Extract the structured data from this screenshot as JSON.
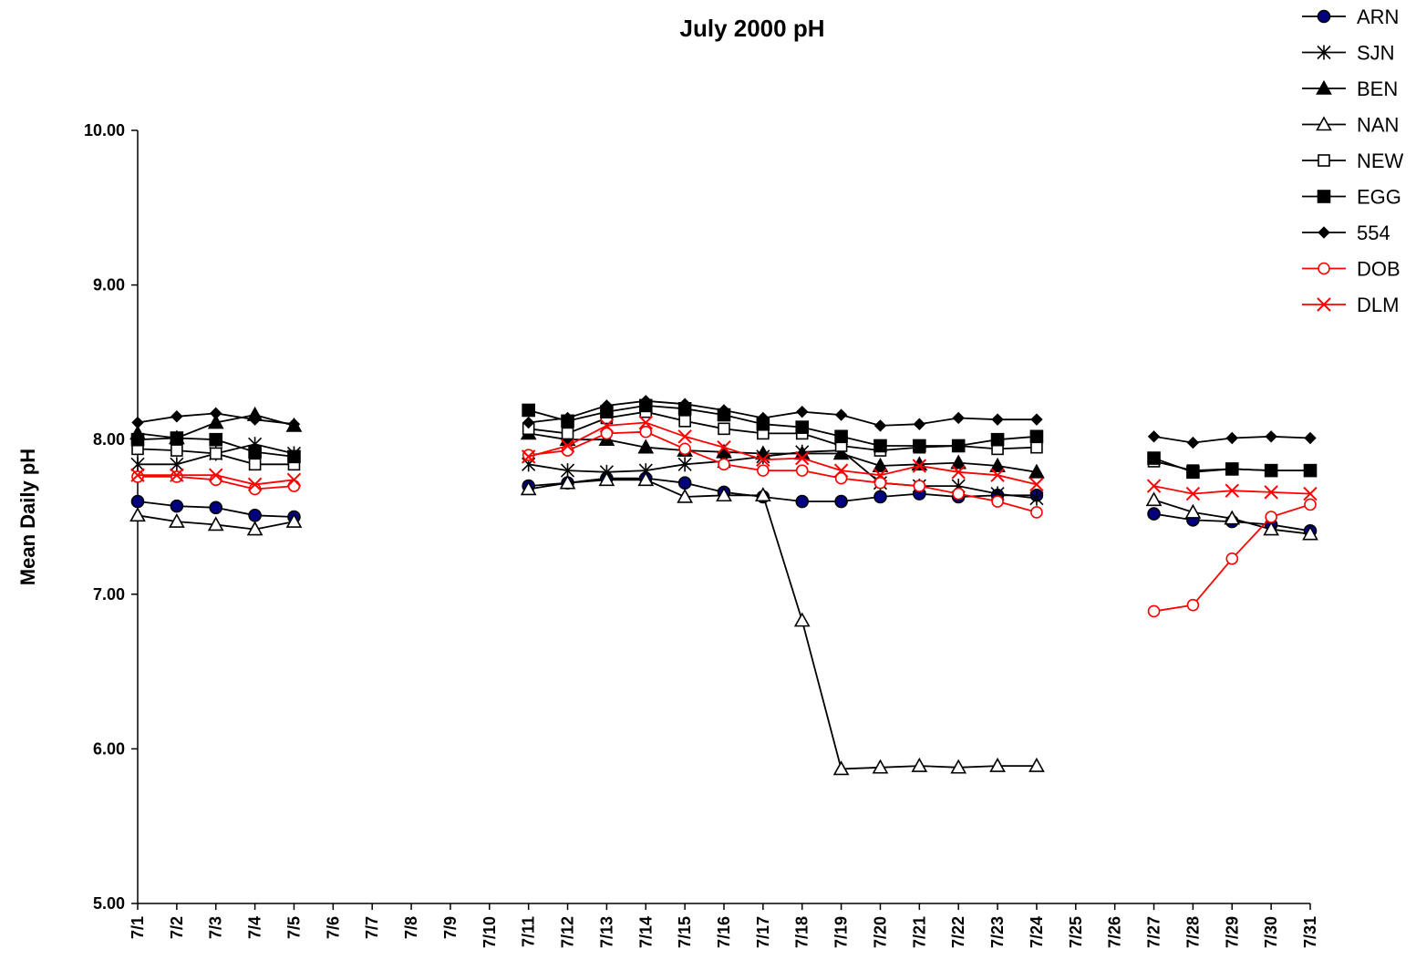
{
  "chart_data": {
    "type": "line",
    "title": "July 2000 pH",
    "xlabel": "",
    "ylabel": "Mean Daily pH",
    "ylim": [
      5.0,
      10.0
    ],
    "yticks": [
      "5.00",
      "6.00",
      "7.00",
      "8.00",
      "9.00",
      "10.00"
    ],
    "grid": false,
    "legend_position": "top-right",
    "categories": [
      "7/1",
      "7/2",
      "7/3",
      "7/4",
      "7/5",
      "7/6",
      "7/7",
      "7/8",
      "7/9",
      "7/10",
      "7/11",
      "7/12",
      "7/13",
      "7/14",
      "7/15",
      "7/16",
      "7/17",
      "7/18",
      "7/19",
      "7/20",
      "7/21",
      "7/22",
      "7/23",
      "7/24",
      "7/25",
      "7/26",
      "7/27",
      "7/28",
      "7/29",
      "7/30",
      "7/31"
    ],
    "series": [
      {
        "name": "ARN",
        "color": "#000000",
        "marker": "circle-filled-navy",
        "values": [
          7.6,
          7.57,
          7.56,
          7.51,
          7.5,
          null,
          null,
          null,
          null,
          null,
          7.7,
          7.72,
          7.75,
          7.75,
          7.72,
          7.66,
          7.63,
          7.6,
          7.6,
          7.63,
          7.65,
          7.63,
          7.64,
          7.64,
          null,
          null,
          7.52,
          7.48,
          7.47,
          7.45,
          7.41
        ]
      },
      {
        "name": "SJN",
        "color": "#000000",
        "marker": "asterisk",
        "values": [
          7.84,
          7.84,
          7.91,
          7.97,
          7.91,
          null,
          null,
          null,
          null,
          null,
          7.84,
          7.8,
          7.79,
          7.8,
          7.84,
          7.86,
          7.89,
          7.92,
          7.93,
          7.72,
          7.7,
          7.7,
          7.65,
          7.62,
          null,
          null,
          null,
          null,
          null,
          null,
          null
        ]
      },
      {
        "name": "BEN",
        "color": "#000000",
        "marker": "triangle-filled",
        "values": [
          8.04,
          8.01,
          8.11,
          8.16,
          8.09,
          null,
          null,
          null,
          null,
          null,
          8.04,
          8.0,
          8.0,
          7.95,
          7.93,
          7.92,
          7.91,
          7.91,
          7.91,
          7.83,
          7.84,
          7.85,
          7.83,
          7.79,
          null,
          null,
          null,
          null,
          null,
          null,
          null
        ]
      },
      {
        "name": "NAN",
        "color": "#000000",
        "marker": "triangle-open",
        "values": [
          7.51,
          7.47,
          7.45,
          7.42,
          7.47,
          null,
          null,
          null,
          null,
          null,
          7.68,
          7.72,
          7.74,
          7.74,
          7.63,
          7.64,
          7.64,
          6.83,
          5.87,
          5.88,
          5.89,
          5.88,
          5.89,
          5.89,
          null,
          null,
          7.61,
          7.53,
          7.49,
          7.42,
          7.39
        ]
      },
      {
        "name": "NEW",
        "color": "#000000",
        "marker": "square-open",
        "values": [
          7.94,
          7.93,
          7.91,
          7.84,
          7.84,
          null,
          null,
          null,
          null,
          null,
          8.07,
          8.04,
          8.14,
          8.18,
          8.12,
          8.07,
          8.04,
          8.04,
          7.96,
          7.93,
          7.95,
          7.96,
          7.94,
          7.95,
          null,
          null,
          7.86,
          7.8,
          7.81,
          7.8,
          7.8
        ]
      },
      {
        "name": "EGG",
        "color": "#000000",
        "marker": "square-filled",
        "values": [
          8.0,
          8.01,
          8.0,
          7.92,
          7.89,
          null,
          null,
          null,
          null,
          null,
          8.19,
          8.12,
          8.18,
          8.22,
          8.2,
          8.16,
          8.1,
          8.08,
          8.02,
          7.96,
          7.96,
          7.96,
          8.0,
          8.02,
          null,
          null,
          7.88,
          7.79,
          7.81,
          7.8,
          7.8
        ]
      },
      {
        "name": "554",
        "color": "#000000",
        "marker": "diamond-filled",
        "values": [
          8.11,
          8.15,
          8.17,
          8.13,
          8.1,
          null,
          null,
          null,
          null,
          null,
          8.11,
          8.14,
          8.22,
          8.25,
          8.23,
          8.19,
          8.14,
          8.18,
          8.16,
          8.09,
          8.1,
          8.14,
          8.13,
          8.13,
          null,
          null,
          8.02,
          7.98,
          8.01,
          8.02,
          8.01
        ]
      },
      {
        "name": "DOB",
        "color": "#ff0000",
        "marker": "circle-open",
        "values": [
          7.76,
          7.76,
          7.74,
          7.68,
          7.7,
          null,
          null,
          null,
          null,
          null,
          7.9,
          7.93,
          8.04,
          8.05,
          7.94,
          7.84,
          7.8,
          7.8,
          7.75,
          7.72,
          7.7,
          7.65,
          7.6,
          7.53,
          null,
          null,
          6.89,
          6.93,
          7.23,
          7.5,
          7.58
        ]
      },
      {
        "name": "DLM",
        "color": "#ff0000",
        "marker": "x",
        "values": [
          7.77,
          7.77,
          7.77,
          7.71,
          7.74,
          null,
          null,
          null,
          null,
          null,
          7.89,
          7.96,
          8.09,
          8.11,
          8.02,
          7.95,
          7.87,
          7.88,
          7.8,
          7.77,
          7.83,
          7.79,
          7.77,
          7.71,
          null,
          null,
          7.7,
          7.65,
          7.67,
          7.66,
          7.65
        ]
      }
    ]
  }
}
